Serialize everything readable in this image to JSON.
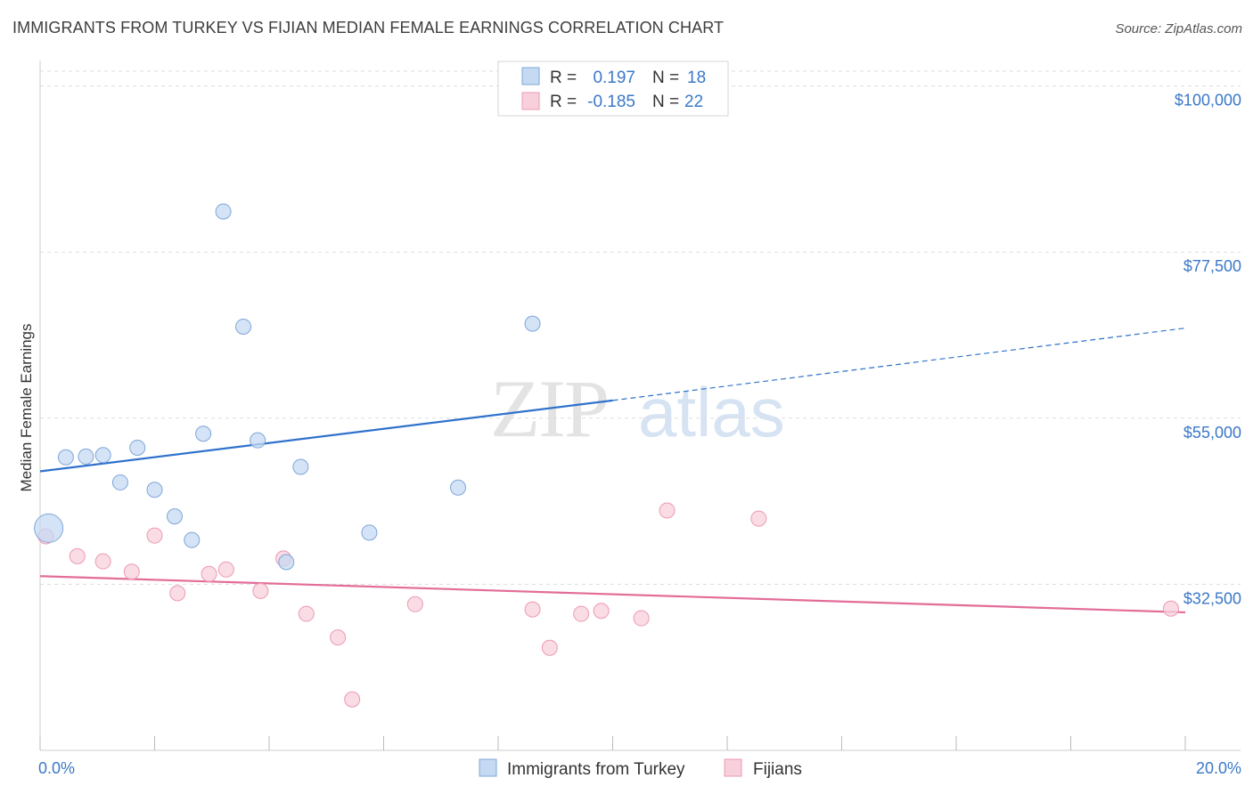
{
  "title": "IMMIGRANTS FROM TURKEY VS FIJIAN MEDIAN FEMALE EARNINGS CORRELATION CHART",
  "source": "Source: ZipAtlas.com",
  "colors": {
    "blue_fill": "#c5d9f2",
    "blue_stroke": "#7ea6da",
    "blue_line": "#2f72cc",
    "pink_fill": "#f8d0dc",
    "pink_stroke": "#ec9ab3",
    "pink_line": "#e36c98",
    "tick_text": "#3b78c8",
    "grid": "#dddddd"
  },
  "legend": {
    "rows": [
      {
        "r_label": "R =",
        "r_value": "0.197",
        "n_label": "N =",
        "n_value": "18"
      },
      {
        "r_label": "R =",
        "r_value": "-0.185",
        "n_label": "N =",
        "n_value": "22"
      }
    ]
  },
  "chart_data": {
    "type": "scatter",
    "title": "IMMIGRANTS FROM TURKEY VS FIJIAN MEDIAN FEMALE EARNINGS CORRELATION CHART",
    "xlabel": "",
    "ylabel": "Median Female Earnings",
    "xlim": [
      0,
      20
    ],
    "ylim": [
      10000,
      102000
    ],
    "x_tick_labels": [
      "0.0%",
      "20.0%"
    ],
    "y_ticks": [
      32500,
      55000,
      77500,
      100000
    ],
    "y_tick_labels": [
      "$32,500",
      "$55,000",
      "$77,500",
      "$100,000"
    ],
    "grid": true,
    "legend_position": "top-center",
    "watermark": "ZIPatlas",
    "series": [
      {
        "name": "Immigrants from Turkey",
        "color": "#c5d9f2",
        "points": [
          {
            "x": 0.15,
            "y": 40100,
            "big": true
          },
          {
            "x": 0.45,
            "y": 49700
          },
          {
            "x": 0.8,
            "y": 49800
          },
          {
            "x": 1.1,
            "y": 50000
          },
          {
            "x": 1.4,
            "y": 46300
          },
          {
            "x": 1.7,
            "y": 51000
          },
          {
            "x": 2.0,
            "y": 45300
          },
          {
            "x": 2.35,
            "y": 41700
          },
          {
            "x": 2.65,
            "y": 38500
          },
          {
            "x": 2.85,
            "y": 52900
          },
          {
            "x": 3.2,
            "y": 83000
          },
          {
            "x": 3.55,
            "y": 67400
          },
          {
            "x": 3.8,
            "y": 52000
          },
          {
            "x": 4.3,
            "y": 35500
          },
          {
            "x": 4.55,
            "y": 48400
          },
          {
            "x": 5.75,
            "y": 39500
          },
          {
            "x": 7.3,
            "y": 45600
          },
          {
            "x": 8.6,
            "y": 67800
          }
        ],
        "trend": {
          "x": [
            0,
            10
          ],
          "y": [
            47800,
            57400
          ],
          "dashed_to": [
            20,
            67200
          ]
        }
      },
      {
        "name": "Fijians",
        "color": "#f8d0dc",
        "points": [
          {
            "x": 0.1,
            "y": 39000
          },
          {
            "x": 0.65,
            "y": 36300
          },
          {
            "x": 1.1,
            "y": 35600
          },
          {
            "x": 1.6,
            "y": 34200
          },
          {
            "x": 2.0,
            "y": 39100
          },
          {
            "x": 2.4,
            "y": 31300
          },
          {
            "x": 2.95,
            "y": 33900
          },
          {
            "x": 3.25,
            "y": 34500
          },
          {
            "x": 3.85,
            "y": 31600
          },
          {
            "x": 4.25,
            "y": 36000
          },
          {
            "x": 4.65,
            "y": 28500
          },
          {
            "x": 5.2,
            "y": 25300
          },
          {
            "x": 5.45,
            "y": 16900
          },
          {
            "x": 6.55,
            "y": 29800
          },
          {
            "x": 8.6,
            "y": 29100
          },
          {
            "x": 8.9,
            "y": 23900
          },
          {
            "x": 9.45,
            "y": 28500
          },
          {
            "x": 9.8,
            "y": 28900
          },
          {
            "x": 10.5,
            "y": 27900
          },
          {
            "x": 10.95,
            "y": 42500
          },
          {
            "x": 12.55,
            "y": 41400
          },
          {
            "x": 19.75,
            "y": 29200
          }
        ],
        "trend": {
          "x": [
            0,
            20
          ],
          "y": [
            33600,
            28700
          ]
        }
      }
    ]
  }
}
